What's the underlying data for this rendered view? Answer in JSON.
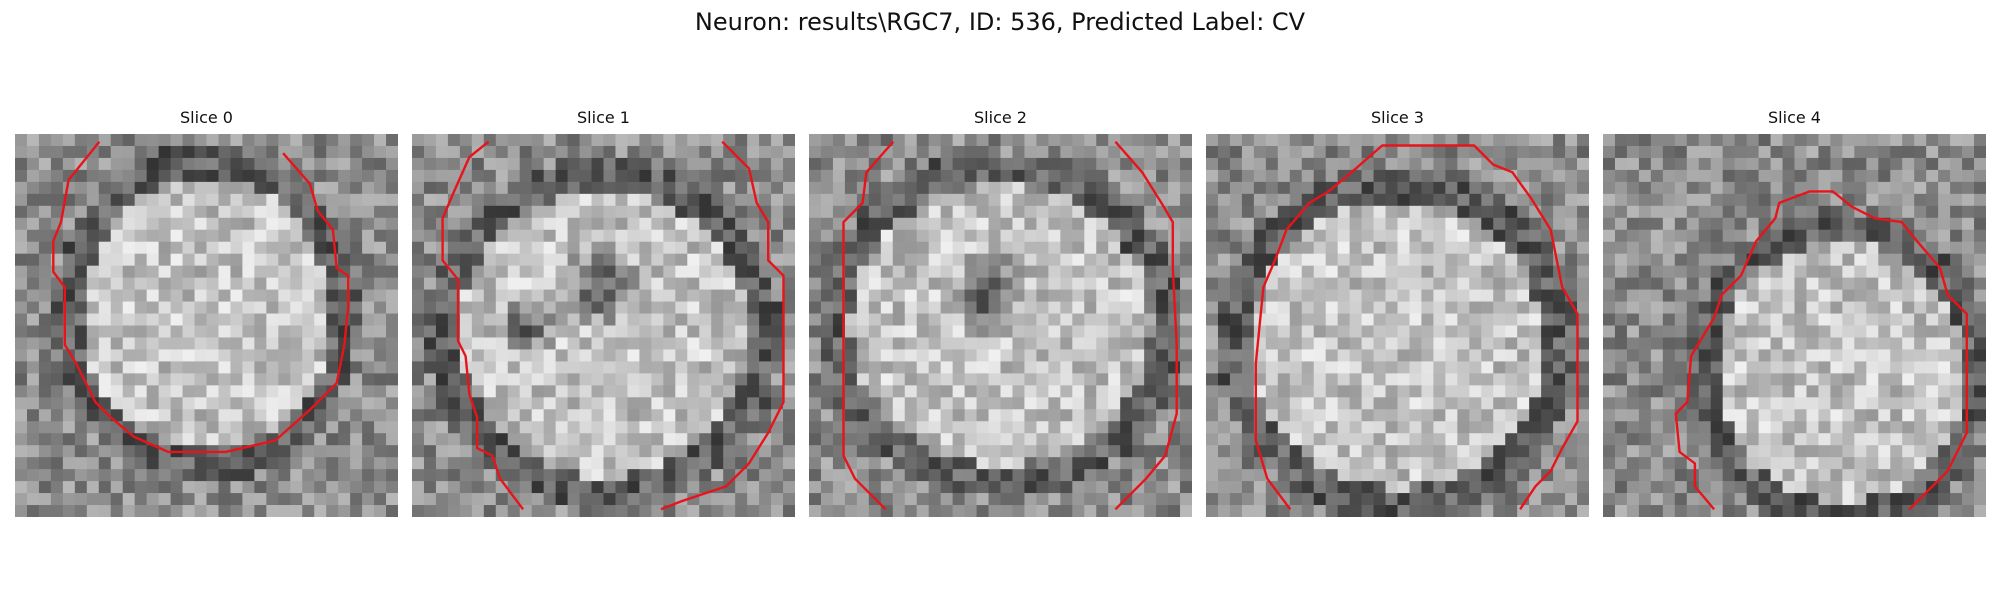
{
  "figure": {
    "title": "Neuron: results\\RGC7, ID: 536, Predicted Label: CV"
  },
  "slices": [
    {
      "title": "Slice 0"
    },
    {
      "title": "Slice 1"
    },
    {
      "title": "Slice 2"
    },
    {
      "title": "Slice 3"
    },
    {
      "title": "Slice 4"
    }
  ],
  "colors": {
    "background": "#ffffff",
    "contour": "#e8141b",
    "colormap": "grayscale"
  }
}
